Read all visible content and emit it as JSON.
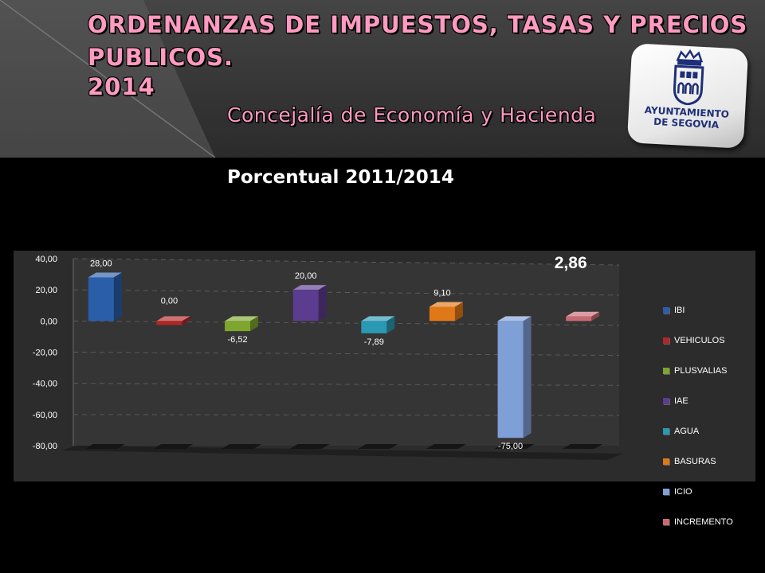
{
  "header": {
    "title_lines": [
      "ORDENANZAS DE IMPUESTOS, TASAS Y PRECIOS",
      "PUBLICOS.",
      "2014"
    ],
    "subtitle": "Concejalía de Economía y Hacienda",
    "title_color": "#ff9ac0",
    "logo": {
      "text": "AYUNTAMIENTO\nDE SEGOVIA",
      "color": "#1e2f78"
    }
  },
  "chart_data": {
    "type": "bar",
    "title": "Porcentual 2011/2014",
    "three_d": true,
    "categories": [
      "IBI",
      "VEHICULOS",
      "PLUSVALIAS",
      "IAE",
      "AGUA",
      "BASURAS",
      "ICIO",
      "INCREMENTO"
    ],
    "series": [
      {
        "name": "IBI",
        "value": 28.0,
        "label": "28,00",
        "color": "#2a5ea8"
      },
      {
        "name": "VEHICULOS",
        "value": 0.0,
        "label": "0,00",
        "color": "#b12626"
      },
      {
        "name": "PLUSVALIAS",
        "value": -6.52,
        "label": "-6,52",
        "color": "#7ea52d"
      },
      {
        "name": "IAE",
        "value": 20.0,
        "label": "20,00",
        "color": "#5b3c8e"
      },
      {
        "name": "AGUA",
        "value": -7.89,
        "label": "-7,89",
        "color": "#2b98b4"
      },
      {
        "name": "BASURAS",
        "value": 9.1,
        "label": "9,10",
        "color": "#e17817"
      },
      {
        "name": "ICIO",
        "value": -75.0,
        "label": "-75,00",
        "color": "#7f9fd7"
      },
      {
        "name": "INCREMENTO",
        "value": 2.86,
        "label": "2,86",
        "color": "#c96a73"
      }
    ],
    "y_axis": {
      "min": -80,
      "max": 40,
      "step": 20,
      "tick_labels": [
        "-80,00",
        "-60,00",
        "-40,00",
        "-20,00",
        "0,00",
        "20,00",
        "40,00"
      ]
    },
    "gridlines": true,
    "legend_position": "right"
  }
}
